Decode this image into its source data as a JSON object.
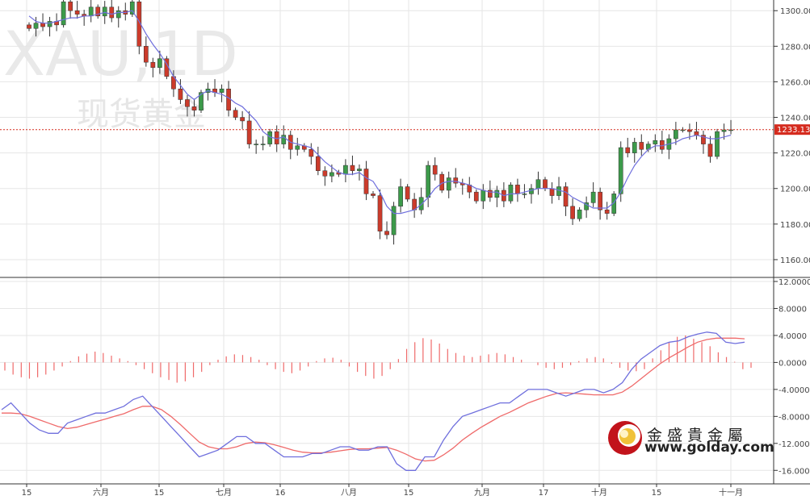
{
  "chart_data": [
    {
      "type": "candlestick",
      "symbol": "XAU,1D",
      "name": "现货黄金",
      "y_ticks": [
        "1300.00",
        "1280.00",
        "1260.00",
        "1240.00",
        "1220.00",
        "1200.00",
        "1180.00",
        "1160.00"
      ],
      "ylim": [
        1150,
        1306
      ],
      "current_price": "1233.13",
      "x_ticks": [
        "15",
        "六月",
        "15",
        "七月",
        "16",
        "八月",
        "15",
        "九月",
        "17",
        "十月",
        "15",
        "十一月"
      ],
      "series": [
        {
          "name": "price",
          "close": [
            1290,
            1293,
            1291,
            1294,
            1292,
            1305,
            1300,
            1298,
            1297,
            1302,
            1297,
            1302,
            1296,
            1300,
            1298,
            1305,
            1280,
            1271,
            1268,
            1273,
            1263,
            1256,
            1250,
            1246,
            1244,
            1254,
            1256,
            1254,
            1256,
            1244,
            1240,
            1238,
            1225,
            1225,
            1225,
            1232,
            1225,
            1230,
            1222,
            1224,
            1222,
            1218,
            1210,
            1207,
            1209,
            1208,
            1213,
            1210,
            1211,
            1197,
            1196,
            1176,
            1174,
            1190,
            1201,
            1194,
            1188,
            1195,
            1213,
            1208,
            1199,
            1206,
            1203,
            1202,
            1198,
            1193,
            1199,
            1195,
            1199,
            1193,
            1202,
            1197,
            1197,
            1200,
            1205,
            1200,
            1196,
            1201,
            1190,
            1183,
            1188,
            1192,
            1198,
            1188,
            1186,
            1197,
            1223,
            1220,
            1226,
            1222,
            1225,
            1227,
            1222,
            1228,
            1233,
            1233,
            1232,
            1230,
            1225,
            1218,
            1232,
            1233,
            1233
          ]
        },
        {
          "name": "MA",
          "values": [
            1297,
            1294,
            1293,
            1293,
            1294,
            1295,
            1296,
            1296,
            1297,
            1297,
            1298,
            1299,
            1298,
            1299,
            1299,
            1300,
            1294,
            1287,
            1281,
            1276,
            1270,
            1263,
            1258,
            1253,
            1250,
            1253,
            1255,
            1254,
            1253,
            1251,
            1248,
            1246,
            1242,
            1238,
            1232,
            1229,
            1228,
            1229,
            1226,
            1225,
            1224,
            1223,
            1219,
            1215,
            1212,
            1209,
            1208,
            1208,
            1209,
            1206,
            1204,
            1198,
            1190,
            1186,
            1186,
            1187,
            1188,
            1191,
            1195,
            1200,
            1203,
            1204,
            1204,
            1203,
            1202,
            1200,
            1199,
            1198,
            1198,
            1196,
            1197,
            1197,
            1198,
            1199,
            1200,
            1200,
            1200,
            1199,
            1198,
            1195,
            1193,
            1191,
            1189,
            1189,
            1189,
            1192,
            1198,
            1206,
            1213,
            1218,
            1222,
            1224,
            1224,
            1225,
            1226,
            1228,
            1229,
            1230,
            1229,
            1228,
            1228,
            1229,
            1230
          ]
        }
      ]
    },
    {
      "type": "macd",
      "y_ticks": [
        "12.0000",
        "8.0000",
        "4.0000",
        "0.0000",
        "-4.0000",
        "-8.0000",
        "-12.0000",
        "-16.0000"
      ],
      "ylim": [
        -18,
        12.6
      ],
      "series": [
        {
          "name": "MACD",
          "values": [
            -7,
            -6,
            -7.5,
            -9,
            -10,
            -10.5,
            -10.5,
            -9,
            -8.5,
            -8,
            -7.5,
            -7.5,
            -7,
            -6.5,
            -5.5,
            -5,
            -6.5,
            -8,
            -9.5,
            -11,
            -12.5,
            -14,
            -13.5,
            -13,
            -12,
            -11,
            -11,
            -12,
            -12,
            -13,
            -14,
            -14,
            -14,
            -13.5,
            -13.5,
            -13,
            -12.5,
            -12.5,
            -13,
            -13,
            -12.5,
            -12.5,
            -15,
            -16,
            -16,
            -14,
            -14,
            -11.5,
            -9.5,
            -8,
            -7.5,
            -7,
            -6.5,
            -6,
            -6,
            -5,
            -4,
            -4,
            -4,
            -4.5,
            -5,
            -4.5,
            -4,
            -4,
            -4.5,
            -4,
            -3,
            -1,
            0.5,
            1.5,
            2.5,
            3,
            3.2,
            3.8,
            4.2,
            4.5,
            4.3,
            3,
            2.8,
            3
          ]
        },
        {
          "name": "Signal",
          "values": [
            -7.5,
            -7.5,
            -7.6,
            -8,
            -8.5,
            -9,
            -9.5,
            -9.8,
            -9.6,
            -9.2,
            -8.8,
            -8.4,
            -8,
            -7.6,
            -7,
            -6.5,
            -6.5,
            -7,
            -8,
            -9.2,
            -10.5,
            -11.8,
            -12.5,
            -12.8,
            -12.8,
            -12.5,
            -12,
            -11.8,
            -11.9,
            -12.2,
            -12.6,
            -13,
            -13.3,
            -13.4,
            -13.4,
            -13.3,
            -13.1,
            -12.9,
            -12.8,
            -12.8,
            -12.7,
            -12.6,
            -13,
            -13.6,
            -14.3,
            -14.6,
            -14.5,
            -13.7,
            -12.7,
            -11.5,
            -10.5,
            -9.6,
            -8.8,
            -8,
            -7.4,
            -6.7,
            -6,
            -5.5,
            -5,
            -4.6,
            -4.5,
            -4.6,
            -4.7,
            -4.8,
            -4.8,
            -4.8,
            -4.4,
            -3.5,
            -2.4,
            -1.3,
            -0.2,
            0.7,
            1.5,
            2.3,
            3,
            3.4,
            3.6,
            3.6,
            3.6,
            3.5
          ]
        },
        {
          "name": "Histogram",
          "values": [
            -1.2,
            -1.8,
            -2.2,
            -2.4,
            -2.2,
            -1.8,
            -1.2,
            -0.6,
            0.2,
            0.9,
            1.3,
            1.6,
            1.4,
            1,
            0.6,
            0.2,
            -0.4,
            -1,
            -1.6,
            -2.2,
            -2.6,
            -3,
            -2.8,
            -2.2,
            -1.4,
            -0.4,
            0.4,
            0.9,
            1.2,
            1.1,
            0.8,
            0.4,
            -0.4,
            -1,
            -1.4,
            -1.6,
            -1.2,
            -0.6,
            0.2,
            0.6,
            0.7,
            0.4,
            -0.6,
            -1.4,
            -2,
            -2.4,
            -2,
            -1,
            0.5,
            2,
            3,
            3.6,
            3.4,
            2.8,
            2,
            1.4,
            1,
            0.8,
            1,
            1.2,
            1.4,
            1.2,
            0.8,
            0.4,
            0,
            -0.4,
            -0.8,
            -1,
            -0.8,
            -0.4,
            0.2,
            0.6,
            0.8,
            0.6,
            -0.2,
            -0.8,
            -1.2,
            -1.3,
            -1,
            0.6,
            1.8,
            3,
            3.8,
            4,
            3.5,
            3,
            2.4,
            1.5,
            0.8,
            0.1,
            -1,
            -0.8
          ]
        }
      ]
    }
  ],
  "brand": {
    "name_cn": "金盛貴金屬",
    "url": "www.golday.com"
  },
  "colors": {
    "up": "#3c9a4a",
    "down": "#cc3b2b",
    "ma": "#6f6fdd",
    "macd": "#6f6fdd",
    "signal": "#ef6a6a",
    "hist": "#ef6a6a",
    "price_line": "#d52b1e",
    "grid": "#e6e6e6"
  }
}
